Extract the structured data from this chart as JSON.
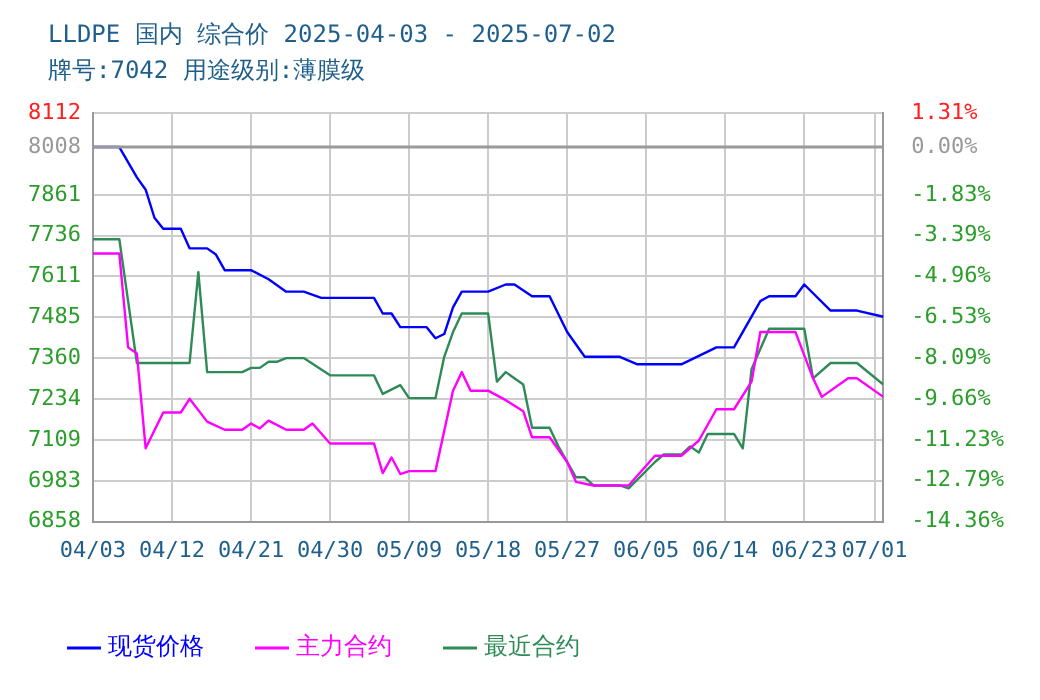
{
  "chart_data": {
    "type": "line",
    "title": "LLDPE 国内 综合价 2025-04-03 - 2025-07-02",
    "subtitle": "牌号:7042 用途级别:薄膜级",
    "xlim": [
      "2025-04-03",
      "2025-07-02"
    ],
    "xticks": [
      {
        "value": "2025-04-03",
        "label": "04/03"
      },
      {
        "value": "2025-04-12",
        "label": "04/12"
      },
      {
        "value": "2025-04-21",
        "label": "04/21"
      },
      {
        "value": "2025-04-30",
        "label": "04/30"
      },
      {
        "value": "2025-05-09",
        "label": "05/09"
      },
      {
        "value": "2025-05-18",
        "label": "05/18"
      },
      {
        "value": "2025-05-27",
        "label": "05/27"
      },
      {
        "value": "2025-06-05",
        "label": "06/05"
      },
      {
        "value": "2025-06-14",
        "label": "06/14"
      },
      {
        "value": "2025-06-23",
        "label": "06/23"
      },
      {
        "value": "2025-07-01",
        "label": "07/01"
      }
    ],
    "ylim": [
      6858,
      8112
    ],
    "yticks": [
      6858,
      6983,
      7109,
      7234,
      7360,
      7485,
      7611,
      7736,
      7861,
      8008,
      8112
    ],
    "y2lim": [
      -14.36,
      1.31
    ],
    "y2ticks": [
      {
        "value": -14.36,
        "label": "-14.36%"
      },
      {
        "value": -12.79,
        "label": "-12.79%"
      },
      {
        "value": -11.23,
        "label": "-11.23%"
      },
      {
        "value": -9.66,
        "label": "-9.66%"
      },
      {
        "value": -8.09,
        "label": "-8.09%"
      },
      {
        "value": -6.53,
        "label": "-6.53%"
      },
      {
        "value": -4.96,
        "label": "-4.96%"
      },
      {
        "value": -3.39,
        "label": "-3.39%"
      },
      {
        "value": -1.83,
        "label": "-1.83%"
      },
      {
        "value": 0,
        "label": "0.00%"
      },
      {
        "value": 1.31,
        "label": "1.31%"
      }
    ],
    "grid": true,
    "legend": "bottom",
    "marker": "none",
    "line_style": "solid",
    "ref_lines": [
      {
        "axis": "y",
        "value": 8008,
        "color": "#999999"
      }
    ],
    "series": [
      {
        "name": "现货价格",
        "color": "#0000ff",
        "x": [
          "2025-04-03",
          "2025-04-06",
          "2025-04-08",
          "2025-04-09",
          "2025-04-10",
          "2025-04-11",
          "2025-04-13",
          "2025-04-14",
          "2025-04-16",
          "2025-04-17",
          "2025-04-18",
          "2025-04-21",
          "2025-04-23",
          "2025-04-25",
          "2025-04-27",
          "2025-04-29",
          "2025-05-05",
          "2025-05-06",
          "2025-05-07",
          "2025-05-08",
          "2025-05-11",
          "2025-05-12",
          "2025-05-13",
          "2025-05-14",
          "2025-05-15",
          "2025-05-18",
          "2025-05-20",
          "2025-05-21",
          "2025-05-23",
          "2025-05-25",
          "2025-05-27",
          "2025-05-29",
          "2025-06-02",
          "2025-06-04",
          "2025-06-09",
          "2025-06-13",
          "2025-06-15",
          "2025-06-18",
          "2025-06-19",
          "2025-06-22",
          "2025-06-23",
          "2025-06-26",
          "2025-06-29",
          "2025-07-02"
        ],
        "values": [
          8008,
          8008,
          7915,
          7877,
          7791,
          7757,
          7757,
          7697,
          7697,
          7678,
          7630,
          7630,
          7602,
          7564,
          7564,
          7545,
          7545,
          7497,
          7497,
          7455,
          7455,
          7421,
          7434,
          7516,
          7564,
          7564,
          7586,
          7586,
          7550,
          7550,
          7440,
          7364,
          7364,
          7341,
          7341,
          7393,
          7393,
          7535,
          7550,
          7550,
          7586,
          7506,
          7506,
          7487
        ]
      },
      {
        "name": "主力合约",
        "color": "#ff00ff",
        "x": [
          "2025-04-03",
          "2025-04-06",
          "2025-04-07",
          "2025-04-08",
          "2025-04-09",
          "2025-04-11",
          "2025-04-13",
          "2025-04-14",
          "2025-04-16",
          "2025-04-18",
          "2025-04-20",
          "2025-04-21",
          "2025-04-22",
          "2025-04-23",
          "2025-04-25",
          "2025-04-27",
          "2025-04-28",
          "2025-04-30",
          "2025-05-05",
          "2025-05-06",
          "2025-05-07",
          "2025-05-08",
          "2025-05-09",
          "2025-05-12",
          "2025-05-14",
          "2025-05-15",
          "2025-05-16",
          "2025-05-18",
          "2025-05-20",
          "2025-05-22",
          "2025-05-23",
          "2025-05-25",
          "2025-05-27",
          "2025-05-28",
          "2025-05-30",
          "2025-06-03",
          "2025-06-06",
          "2025-06-09",
          "2025-06-11",
          "2025-06-13",
          "2025-06-15",
          "2025-06-17",
          "2025-06-18",
          "2025-06-22",
          "2025-06-24",
          "2025-06-25",
          "2025-06-28",
          "2025-06-29",
          "2025-07-02"
        ],
        "values": [
          7681,
          7681,
          7393,
          7374,
          7083,
          7193,
          7193,
          7235,
          7165,
          7140,
          7140,
          7159,
          7144,
          7168,
          7140,
          7140,
          7159,
          7098,
          7098,
          7007,
          7055,
          7004,
          7013,
          7013,
          7260,
          7317,
          7260,
          7260,
          7231,
          7197,
          7117,
          7117,
          7041,
          6980,
          6969,
          6969,
          7060,
          7060,
          7107,
          7203,
          7203,
          7288,
          7440,
          7440,
          7298,
          7241,
          7298,
          7298,
          7241
        ]
      },
      {
        "name": "最近合约",
        "color": "#2e8b57",
        "x": [
          "2025-04-03",
          "2025-04-06",
          "2025-04-07",
          "2025-04-08",
          "2025-04-14",
          "2025-04-15",
          "2025-04-16",
          "2025-04-20",
          "2025-04-21",
          "2025-04-22",
          "2025-04-23",
          "2025-04-24",
          "2025-04-25",
          "2025-04-27",
          "2025-04-30",
          "2025-05-05",
          "2025-05-06",
          "2025-05-08",
          "2025-05-09",
          "2025-05-12",
          "2025-05-13",
          "2025-05-14",
          "2025-05-15",
          "2025-05-18",
          "2025-05-19",
          "2025-05-20",
          "2025-05-22",
          "2025-05-23",
          "2025-05-25",
          "2025-05-26",
          "2025-05-28",
          "2025-05-29",
          "2025-05-30",
          "2025-06-02",
          "2025-06-03",
          "2025-06-06",
          "2025-06-07",
          "2025-06-09",
          "2025-06-10",
          "2025-06-11",
          "2025-06-12",
          "2025-06-15",
          "2025-06-16",
          "2025-06-17",
          "2025-06-19",
          "2025-06-23",
          "2025-06-24",
          "2025-06-26",
          "2025-06-29",
          "2025-07-02"
        ],
        "values": [
          7725,
          7725,
          7535,
          7345,
          7345,
          7624,
          7317,
          7317,
          7330,
          7330,
          7349,
          7349,
          7360,
          7360,
          7307,
          7307,
          7250,
          7277,
          7237,
          7237,
          7364,
          7440,
          7497,
          7497,
          7288,
          7317,
          7279,
          7146,
          7146,
          7089,
          6994,
          6994,
          6969,
          6969,
          6960,
          7041,
          7064,
          7064,
          7089,
          7070,
          7127,
          7127,
          7083,
          7326,
          7450,
          7450,
          7298,
          7345,
          7345,
          7279
        ]
      }
    ]
  }
}
